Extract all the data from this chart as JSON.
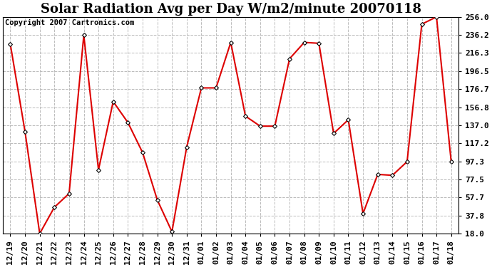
{
  "title": "Solar Radiation Avg per Day W/m2/minute 20070118",
  "copyright": "Copyright 2007 Cartronics.com",
  "labels": [
    "12/19",
    "12/20",
    "12/21",
    "12/22",
    "12/23",
    "12/24",
    "12/25",
    "12/26",
    "12/27",
    "12/28",
    "12/29",
    "12/30",
    "12/31",
    "01/01",
    "01/02",
    "01/03",
    "01/04",
    "01/05",
    "01/06",
    "01/07",
    "01/08",
    "01/09",
    "01/10",
    "01/11",
    "01/12",
    "01/13",
    "01/14",
    "01/15",
    "01/16",
    "01/17",
    "01/18"
  ],
  "values": [
    226,
    130,
    18,
    47,
    62,
    236,
    88,
    163,
    140,
    107,
    55,
    20,
    113,
    178,
    178,
    228,
    147,
    136,
    136,
    210,
    228,
    227,
    128,
    143,
    40,
    83,
    82,
    97,
    248,
    256,
    97
  ],
  "line_color": "#dd0000",
  "marker_facecolor": "#ffffff",
  "marker_edgecolor": "#000000",
  "bg_color": "#ffffff",
  "grid_color": "#bbbbbb",
  "yticks": [
    18.0,
    37.8,
    57.7,
    77.5,
    97.3,
    117.2,
    137.0,
    156.8,
    176.7,
    196.5,
    216.3,
    236.2,
    256.0
  ],
  "ytick_labels": [
    "18.0",
    "37.8",
    "57.7",
    "77.5",
    "97.3",
    "117.2",
    "137.0",
    "156.8",
    "176.7",
    "196.5",
    "216.3",
    "236.2",
    "256.0"
  ],
  "ylim": [
    18.0,
    256.0
  ],
  "title_fontsize": 13,
  "copyright_fontsize": 7.5,
  "tick_fontsize": 8,
  "figwidth": 6.9,
  "figheight": 3.75,
  "dpi": 100
}
